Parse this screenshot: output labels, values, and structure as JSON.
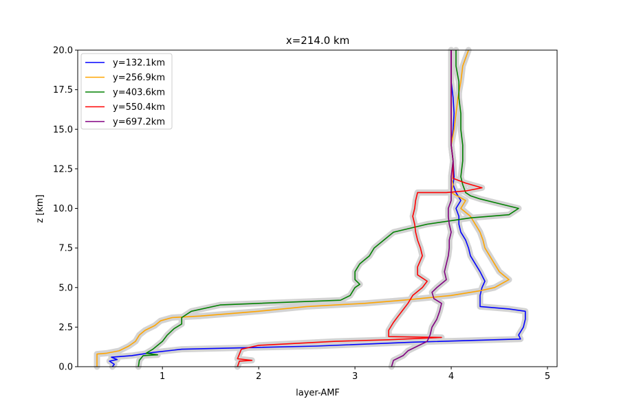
{
  "chart_data": {
    "type": "line",
    "title": "x=214.0 km",
    "xlabel": "layer-AMF",
    "ylabel": "z [km]",
    "xlim": [
      0.12,
      5.1
    ],
    "ylim": [
      0,
      20
    ],
    "xticks": [
      1,
      2,
      3,
      4,
      5
    ],
    "yticks": [
      0.0,
      2.5,
      5.0,
      7.5,
      10.0,
      12.5,
      15.0,
      17.5,
      20.0
    ],
    "x_tick_labels": [
      "1",
      "2",
      "3",
      "4",
      "5"
    ],
    "y_tick_labels": [
      "0.0",
      "2.5",
      "5.0",
      "7.5",
      "10.0",
      "12.5",
      "15.0",
      "17.5",
      "20.0"
    ],
    "grid": false,
    "legend_position": "top-left",
    "uncertainty_band_color": "#d3d3d3",
    "series": [
      {
        "name": "y=132.1km",
        "color": "#0000ff",
        "points": [
          [
            0.48,
            0.0
          ],
          [
            0.5,
            0.15
          ],
          [
            0.45,
            0.35
          ],
          [
            0.53,
            0.45
          ],
          [
            0.47,
            0.6
          ],
          [
            0.68,
            0.7
          ],
          [
            0.9,
            0.9
          ],
          [
            1.2,
            1.1
          ],
          [
            2.6,
            1.3
          ],
          [
            3.6,
            1.55
          ],
          [
            4.72,
            1.75
          ],
          [
            4.7,
            2.0
          ],
          [
            4.75,
            2.5
          ],
          [
            4.77,
            3.0
          ],
          [
            4.77,
            3.5
          ],
          [
            4.6,
            3.65
          ],
          [
            4.3,
            3.8
          ],
          [
            4.3,
            4.5
          ],
          [
            4.32,
            5.0
          ],
          [
            4.35,
            5.4
          ],
          [
            4.3,
            6.0
          ],
          [
            4.25,
            6.5
          ],
          [
            4.2,
            7.0
          ],
          [
            4.18,
            7.5
          ],
          [
            4.15,
            8.0
          ],
          [
            4.1,
            8.5
          ],
          [
            4.08,
            9.0
          ],
          [
            4.08,
            9.5
          ],
          [
            4.05,
            10.0
          ],
          [
            4.1,
            10.5
          ],
          [
            4.05,
            11.0
          ],
          [
            4.02,
            11.5
          ],
          [
            4.03,
            12.0
          ],
          [
            4.02,
            13.0
          ],
          [
            4.0,
            14.0
          ],
          [
            4.02,
            15.0
          ],
          [
            4.03,
            16.0
          ],
          [
            4.02,
            17.0
          ],
          [
            4.0,
            18.0
          ],
          [
            4.0,
            19.0
          ],
          [
            4.0,
            20.0
          ]
        ]
      },
      {
        "name": "y=256.9km",
        "color": "#ffa500",
        "points": [
          [
            0.32,
            0.0
          ],
          [
            0.32,
            0.8
          ],
          [
            0.42,
            0.85
          ],
          [
            0.55,
            1.0
          ],
          [
            0.65,
            1.3
          ],
          [
            0.72,
            1.6
          ],
          [
            0.76,
            2.0
          ],
          [
            0.82,
            2.3
          ],
          [
            0.92,
            2.6
          ],
          [
            0.98,
            2.9
          ],
          [
            1.1,
            3.1
          ],
          [
            1.4,
            3.2
          ],
          [
            2.0,
            3.5
          ],
          [
            2.5,
            3.8
          ],
          [
            3.1,
            4.0
          ],
          [
            3.5,
            4.2
          ],
          [
            4.0,
            4.5
          ],
          [
            4.3,
            4.8
          ],
          [
            4.45,
            5.0
          ],
          [
            4.6,
            5.5
          ],
          [
            4.5,
            6.0
          ],
          [
            4.45,
            6.5
          ],
          [
            4.4,
            7.0
          ],
          [
            4.35,
            7.5
          ],
          [
            4.33,
            8.0
          ],
          [
            4.3,
            8.5
          ],
          [
            4.25,
            9.0
          ],
          [
            4.2,
            9.5
          ],
          [
            4.1,
            10.0
          ],
          [
            4.15,
            10.5
          ],
          [
            4.0,
            11.0
          ],
          [
            4.02,
            11.5
          ],
          [
            4.0,
            12.0
          ],
          [
            4.02,
            13.0
          ],
          [
            4.0,
            14.0
          ],
          [
            4.03,
            15.0
          ],
          [
            4.05,
            16.0
          ],
          [
            4.07,
            17.0
          ],
          [
            4.1,
            18.0
          ],
          [
            4.12,
            19.0
          ],
          [
            4.18,
            20.0
          ]
        ]
      },
      {
        "name": "y=403.6km",
        "color": "#008000",
        "points": [
          [
            0.75,
            0.0
          ],
          [
            0.76,
            0.4
          ],
          [
            0.8,
            0.7
          ],
          [
            0.95,
            0.75
          ],
          [
            0.83,
            0.85
          ],
          [
            0.9,
            1.1
          ],
          [
            1.0,
            1.6
          ],
          [
            1.05,
            2.0
          ],
          [
            1.12,
            2.4
          ],
          [
            1.2,
            2.7
          ],
          [
            1.2,
            3.1
          ],
          [
            1.3,
            3.5
          ],
          [
            1.6,
            3.9
          ],
          [
            2.0,
            4.0
          ],
          [
            2.85,
            4.2
          ],
          [
            2.95,
            4.5
          ],
          [
            3.0,
            5.0
          ],
          [
            3.05,
            5.2
          ],
          [
            3.0,
            5.5
          ],
          [
            3.0,
            6.0
          ],
          [
            3.05,
            6.5
          ],
          [
            3.15,
            7.0
          ],
          [
            3.2,
            7.5
          ],
          [
            3.3,
            8.0
          ],
          [
            3.4,
            8.5
          ],
          [
            3.75,
            9.0
          ],
          [
            4.2,
            9.4
          ],
          [
            4.6,
            9.6
          ],
          [
            4.7,
            10.0
          ],
          [
            4.5,
            10.3
          ],
          [
            4.3,
            10.6
          ],
          [
            4.2,
            10.8
          ],
          [
            4.15,
            11.0
          ],
          [
            4.12,
            11.5
          ],
          [
            4.1,
            12.0
          ],
          [
            4.12,
            13.0
          ],
          [
            4.12,
            14.0
          ],
          [
            4.1,
            15.0
          ],
          [
            4.1,
            16.0
          ],
          [
            4.08,
            17.0
          ],
          [
            4.08,
            18.0
          ],
          [
            4.05,
            19.0
          ],
          [
            4.05,
            20.0
          ]
        ]
      },
      {
        "name": "y=550.4km",
        "color": "#ff0000",
        "points": [
          [
            1.78,
            0.0
          ],
          [
            1.8,
            0.35
          ],
          [
            1.93,
            0.4
          ],
          [
            1.78,
            0.5
          ],
          [
            1.8,
            0.8
          ],
          [
            1.82,
            1.1
          ],
          [
            2.0,
            1.35
          ],
          [
            2.8,
            1.6
          ],
          [
            3.35,
            1.7
          ],
          [
            3.9,
            1.85
          ],
          [
            3.35,
            1.9
          ],
          [
            3.35,
            2.3
          ],
          [
            3.4,
            2.8
          ],
          [
            3.45,
            3.2
          ],
          [
            3.5,
            3.6
          ],
          [
            3.55,
            4.0
          ],
          [
            3.6,
            4.5
          ],
          [
            3.7,
            5.0
          ],
          [
            3.75,
            5.4
          ],
          [
            3.65,
            5.8
          ],
          [
            3.65,
            6.3
          ],
          [
            3.7,
            7.0
          ],
          [
            3.68,
            7.5
          ],
          [
            3.65,
            8.0
          ],
          [
            3.63,
            8.5
          ],
          [
            3.62,
            9.0
          ],
          [
            3.6,
            9.5
          ],
          [
            3.62,
            10.0
          ],
          [
            3.63,
            10.5
          ],
          [
            3.65,
            11.0
          ],
          [
            3.95,
            11.0
          ],
          [
            4.15,
            11.1
          ],
          [
            4.32,
            11.3
          ],
          [
            4.15,
            11.6
          ],
          [
            4.02,
            11.9
          ],
          [
            4.02,
            13.0
          ],
          [
            4.0,
            14.0
          ],
          [
            4.0,
            15.0
          ],
          [
            4.0,
            16.0
          ],
          [
            4.0,
            17.0
          ],
          [
            4.0,
            18.0
          ],
          [
            4.0,
            19.0
          ],
          [
            4.0,
            20.0
          ]
        ]
      },
      {
        "name": "y=697.2km",
        "color": "#800080",
        "points": [
          [
            3.38,
            0.0
          ],
          [
            3.4,
            0.4
          ],
          [
            3.5,
            0.7
          ],
          [
            3.55,
            1.0
          ],
          [
            3.65,
            1.3
          ],
          [
            3.75,
            1.6
          ],
          [
            3.78,
            2.0
          ],
          [
            3.8,
            2.5
          ],
          [
            3.85,
            3.0
          ],
          [
            3.88,
            3.5
          ],
          [
            3.9,
            4.0
          ],
          [
            3.82,
            4.3
          ],
          [
            3.8,
            4.7
          ],
          [
            3.85,
            5.0
          ],
          [
            3.95,
            5.5
          ],
          [
            3.93,
            6.0
          ],
          [
            3.95,
            6.5
          ],
          [
            3.97,
            7.0
          ],
          [
            3.98,
            7.5
          ],
          [
            3.98,
            8.0
          ],
          [
            4.0,
            8.5
          ],
          [
            3.98,
            9.0
          ],
          [
            3.97,
            9.5
          ],
          [
            3.97,
            10.0
          ],
          [
            4.0,
            10.5
          ],
          [
            4.0,
            11.0
          ],
          [
            4.0,
            12.0
          ],
          [
            4.02,
            13.0
          ],
          [
            4.0,
            14.0
          ],
          [
            4.0,
            15.0
          ],
          [
            4.0,
            16.0
          ],
          [
            4.0,
            17.0
          ],
          [
            4.0,
            18.0
          ],
          [
            4.0,
            19.0
          ],
          [
            4.0,
            20.0
          ]
        ]
      }
    ]
  }
}
